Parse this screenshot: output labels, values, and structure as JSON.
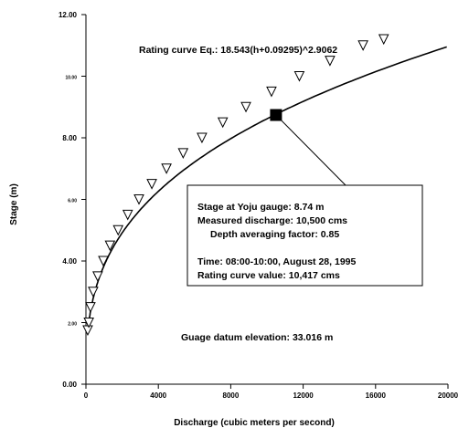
{
  "chart_data": {
    "type": "scatter",
    "xlabel": "Discharge (cubic meters per second)",
    "ylabel": "Stage (m)",
    "xlim": [
      0,
      20000
    ],
    "ylim": [
      0,
      12
    ],
    "x_ticks": [
      "0",
      "4000",
      "8000",
      "12000",
      "16000",
      "20000"
    ],
    "y_ticks": [
      "0.00",
      "2.00",
      "4.00",
      "6.00",
      "8.00",
      "10.00",
      "12.00"
    ],
    "rating_curve": {
      "equation_label": "Rating curve Eq.: 18.543(h+0.09295)^2.9062",
      "coefficient": 18.543,
      "offset": 0.09295,
      "exponent": 2.9062
    },
    "series": [
      {
        "marker": "triangle-down",
        "points": [
          {
            "x": 100,
            "y": 1.75
          },
          {
            "x": 160,
            "y": 2.0
          },
          {
            "x": 250,
            "y": 2.5
          },
          {
            "x": 400,
            "y": 3.0
          },
          {
            "x": 650,
            "y": 3.5
          },
          {
            "x": 960,
            "y": 4.0
          },
          {
            "x": 1330,
            "y": 4.5
          },
          {
            "x": 1780,
            "y": 5.0
          },
          {
            "x": 2310,
            "y": 5.5
          },
          {
            "x": 2930,
            "y": 6.0
          },
          {
            "x": 3640,
            "y": 6.5
          },
          {
            "x": 4450,
            "y": 7.0
          },
          {
            "x": 5370,
            "y": 7.5
          },
          {
            "x": 6410,
            "y": 8.0
          },
          {
            "x": 7560,
            "y": 8.5
          },
          {
            "x": 8840,
            "y": 9.0
          },
          {
            "x": 10250,
            "y": 9.5
          },
          {
            "x": 11790,
            "y": 10.0
          },
          {
            "x": 13480,
            "y": 10.5
          },
          {
            "x": 15310,
            "y": 11.0
          },
          {
            "x": 16450,
            "y": 11.2
          }
        ]
      },
      {
        "marker": "square",
        "points": [
          {
            "x": 10500,
            "y": 8.74
          }
        ]
      }
    ],
    "annotations": {
      "measurement_box": [
        "Stage at Yoju gauge: 8.74 m",
        "Measured discharge: 10,500 cms",
        "Depth averaging factor: 0.85",
        "Time: 08:00-10:00, August 28, 1995",
        "Rating curve value: 10,417 cms"
      ],
      "datum": "Guage datum elevation: 33.016 m"
    },
    "grid": false,
    "legend": "none"
  }
}
